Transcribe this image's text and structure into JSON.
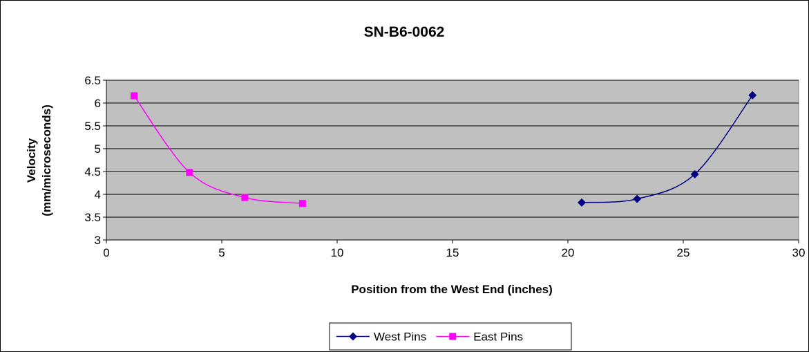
{
  "chart_data": {
    "type": "line",
    "title": "SN-B6-0062",
    "xlabel": "Position from the West End (inches)",
    "ylabel_line1": "Velocity",
    "ylabel_line2": "(mm/microseconds)",
    "xlim": [
      0,
      30
    ],
    "ylim": [
      3,
      6.5
    ],
    "xticks": [
      0,
      5,
      10,
      15,
      20,
      25,
      30
    ],
    "yticks": [
      3,
      3.5,
      4,
      4.5,
      5,
      5.5,
      6,
      6.5
    ],
    "grid": "horizontal",
    "plot_background": "#c0c0c0",
    "legend_position": "bottom",
    "series": [
      {
        "name": "West Pins",
        "color": "#000080",
        "marker": "diamond",
        "x": [
          20.6,
          23.0,
          25.5,
          28.0
        ],
        "y": [
          3.82,
          3.9,
          4.44,
          6.17
        ]
      },
      {
        "name": "East Pins",
        "color": "#ff00ff",
        "marker": "square",
        "x": [
          1.2,
          3.6,
          6.0,
          8.5
        ],
        "y": [
          6.16,
          4.48,
          3.93,
          3.8
        ]
      }
    ]
  }
}
